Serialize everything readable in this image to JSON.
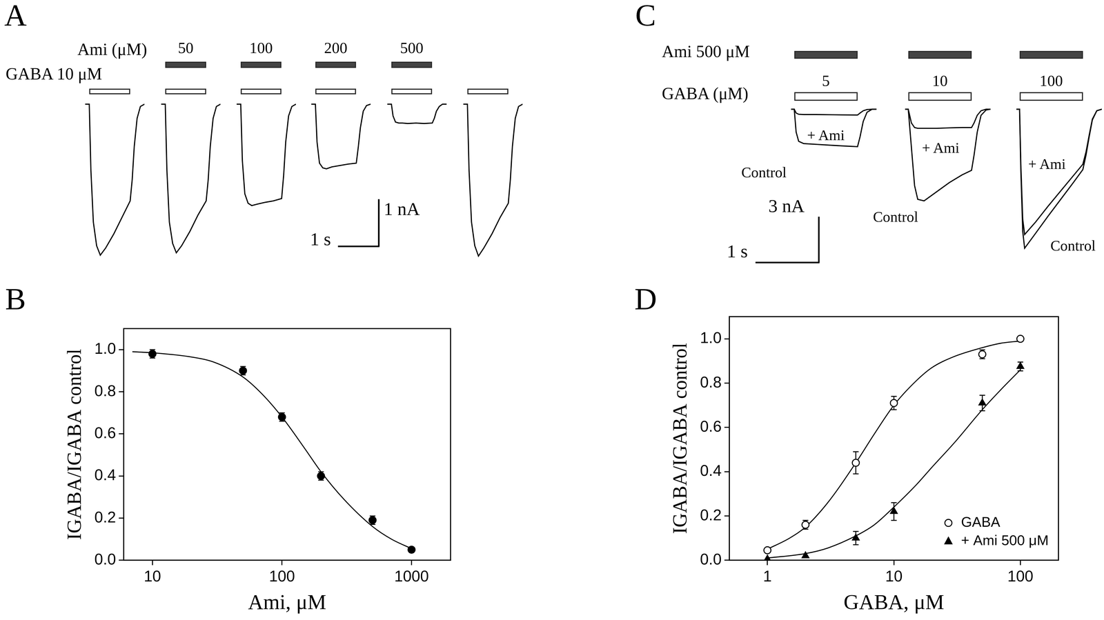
{
  "chart_data": [
    {
      "panel": "A",
      "type": "line",
      "tick_labels": false,
      "xlim": [
        0,
        1.45
      ],
      "ylim": [
        -3.4,
        0.3
      ],
      "scale_bar": {
        "x": 1,
        "x_label": "1 s",
        "y": 1,
        "y_label": "1 nA"
      },
      "applications": [
        {
          "name": "Ami (μM)",
          "color": "#444444",
          "interval": [
            0.1,
            1.1
          ]
        },
        {
          "name": "GABA 10 μM",
          "color": "#ffffff",
          "interval": [
            0.1,
            1.1
          ]
        }
      ],
      "sweeps": [
        {
          "applications": [
            {
              "name": "GABA 10 μM"
            }
          ],
          "series": [
            {
              "color": "#000000",
              "x": [
                0,
                0.1,
                0.14,
                0.2,
                0.28,
                0.37,
                0.5,
                0.7,
                0.9,
                1.1,
                1.15,
                1.2,
                1.27,
                1.35,
                1.45
              ],
              "values": [
                0,
                0,
                -1.4,
                -2.5,
                -3.0,
                -3.2,
                -3.05,
                -2.75,
                -2.4,
                -2.05,
                -1.6,
                -0.9,
                -0.3,
                -0.05,
                0
              ]
            }
          ]
        },
        {
          "applications": [
            {
              "name": "Ami (μM)",
              "label": "50"
            },
            {
              "name": "GABA 10 μM"
            }
          ],
          "series": [
            {
              "color": "#000000",
              "x": [
                0,
                0.1,
                0.14,
                0.2,
                0.28,
                0.37,
                0.5,
                0.7,
                0.9,
                1.1,
                1.15,
                1.2,
                1.27,
                1.35,
                1.45
              ],
              "values": [
                0,
                0,
                -1.4,
                -2.5,
                -2.95,
                -3.15,
                -3.0,
                -2.7,
                -2.35,
                -2.05,
                -1.6,
                -0.9,
                -0.3,
                -0.05,
                0
              ]
            }
          ]
        },
        {
          "applications": [
            {
              "name": "Ami (μM)",
              "label": "100"
            },
            {
              "name": "GABA 10 μM"
            }
          ],
          "series": [
            {
              "color": "#000000",
              "x": [
                0,
                0.1,
                0.14,
                0.2,
                0.28,
                0.37,
                0.5,
                0.7,
                0.9,
                1.1,
                1.15,
                1.2,
                1.27,
                1.35,
                1.45
              ],
              "values": [
                0,
                0,
                -1.2,
                -1.9,
                -2.1,
                -2.15,
                -2.12,
                -2.08,
                -2.05,
                -2.0,
                -1.5,
                -0.8,
                -0.25,
                -0.05,
                0
              ]
            }
          ]
        },
        {
          "applications": [
            {
              "name": "Ami (μM)",
              "label": "200"
            },
            {
              "name": "GABA 10 μM"
            }
          ],
          "series": [
            {
              "color": "#000000",
              "x": [
                0,
                0.1,
                0.14,
                0.2,
                0.28,
                0.37,
                0.5,
                0.7,
                0.9,
                1.1,
                1.15,
                1.2,
                1.27,
                1.35,
                1.45
              ],
              "values": [
                0,
                0,
                -0.8,
                -1.25,
                -1.35,
                -1.37,
                -1.33,
                -1.3,
                -1.27,
                -1.25,
                -0.9,
                -0.5,
                -0.15,
                -0.03,
                0
              ]
            }
          ]
        },
        {
          "applications": [
            {
              "name": "Ami (μM)",
              "label": "500"
            },
            {
              "name": "GABA 10 μM"
            }
          ],
          "series": [
            {
              "color": "#000000",
              "x": [
                0,
                0.1,
                0.14,
                0.2,
                0.28,
                0.37,
                0.5,
                0.7,
                0.9,
                1.1,
                1.15,
                1.2,
                1.27,
                1.35,
                1.45
              ],
              "values": [
                0,
                0,
                -0.25,
                -0.38,
                -0.4,
                -0.4,
                -0.41,
                -0.4,
                -0.41,
                -0.4,
                -0.3,
                -0.15,
                -0.05,
                0,
                0
              ]
            }
          ]
        },
        {
          "applications": [
            {
              "name": "GABA 10 μM"
            }
          ],
          "series": [
            {
              "color": "#000000",
              "x": [
                0,
                0.1,
                0.14,
                0.2,
                0.28,
                0.37,
                0.5,
                0.7,
                0.9,
                1.1,
                1.15,
                1.2,
                1.27,
                1.35,
                1.45
              ],
              "values": [
                0,
                0,
                -1.4,
                -2.5,
                -3.0,
                -3.22,
                -3.05,
                -2.75,
                -2.4,
                -2.1,
                -1.6,
                -0.9,
                -0.3,
                -0.05,
                0
              ]
            }
          ]
        }
      ]
    },
    {
      "panel": "B",
      "type": "scatter",
      "log": "x",
      "grid": false,
      "legend": false,
      "x_label": "Ami, μM",
      "y_label": "IGABA/IGABA control",
      "xlim": [
        6,
        2000
      ],
      "xticks": [
        10,
        100,
        1000
      ],
      "ylim": [
        0,
        1.1
      ],
      "yticks": [
        {
          "value": 0,
          "label": "0.0"
        },
        0.2,
        0.4,
        0.6,
        0.8,
        {
          "value": 1,
          "label": "1.0"
        }
      ],
      "series": [
        {
          "color": "#000000",
          "marker": "circle",
          "x": [
            10,
            50,
            100,
            200,
            500,
            1000
          ],
          "values": [
            0.98,
            0.9,
            0.68,
            0.4,
            0.19,
            0.05
          ],
          "errors": [
            0.02,
            0.02,
            0.02,
            0.02,
            0.02,
            null
          ],
          "fit": {
            "x": [
              7,
              10,
              20,
              30,
              50,
              70,
              100,
              150,
              200,
              300,
              500,
              700,
              1000
            ],
            "values": [
              0.99,
              0.985,
              0.965,
              0.94,
              0.87,
              0.79,
              0.68,
              0.53,
              0.42,
              0.29,
              0.16,
              0.1,
              0.055
            ]
          }
        }
      ]
    },
    {
      "panel": "C",
      "type": "line",
      "tick_labels": false,
      "xlim": [
        0,
        1.35
      ],
      "ylim": [
        -9.5,
        0.5
      ],
      "scale_bar": {
        "x": 1,
        "x_label": "1 s",
        "y": 3,
        "y_label": "3 nA"
      },
      "applications": [
        {
          "name": "Ami 500 μM",
          "color": "#444444",
          "interval": [
            0.05,
            1.05
          ]
        },
        {
          "name": "GABA (μM)",
          "color": "#ffffff",
          "interval": [
            0.05,
            1.05
          ]
        }
      ],
      "sweeps": [
        {
          "applications": [
            {
              "name": "Ami 500 μM"
            },
            {
              "name": "GABA (μM)",
              "label": "5"
            }
          ],
          "series": [
            {
              "name": "Control",
              "color": "#000000",
              "x": [
                0,
                0.05,
                0.08,
                0.12,
                0.2,
                0.4,
                0.6,
                0.8,
                1.05,
                1.09,
                1.14,
                1.2,
                1.28,
                1.35
              ],
              "values": [
                0,
                0,
                -1.5,
                -2.1,
                -2.25,
                -2.3,
                -2.35,
                -2.4,
                -2.45,
                -1.8,
                -0.8,
                -0.2,
                0,
                0
              ]
            },
            {
              "name": "+ Ami",
              "color": "#000000",
              "x": [
                0,
                0.05,
                0.08,
                0.12,
                0.2,
                0.4,
                0.6,
                0.8,
                1.05,
                1.09,
                1.14,
                1.2,
                1.28,
                1.35
              ],
              "values": [
                0,
                0,
                -0.25,
                -0.33,
                -0.35,
                -0.35,
                -0.36,
                -0.37,
                -0.38,
                -0.25,
                -0.1,
                -0.02,
                0,
                0
              ]
            }
          ]
        },
        {
          "applications": [
            {
              "name": "Ami 500 μM"
            },
            {
              "name": "GABA (μM)",
              "label": "10"
            }
          ],
          "series": [
            {
              "name": "Control",
              "color": "#000000",
              "x": [
                0,
                0.05,
                0.1,
                0.15,
                0.2,
                0.3,
                0.5,
                0.7,
                0.9,
                1.05,
                1.09,
                1.14,
                1.2,
                1.28,
                1.35
              ],
              "values": [
                0,
                0,
                -2.5,
                -5.0,
                -5.9,
                -6.0,
                -5.4,
                -4.8,
                -4.3,
                -4.0,
                -3.0,
                -1.5,
                -0.4,
                -0.05,
                0
              ]
            },
            {
              "name": "+ Ami",
              "color": "#000000",
              "x": [
                0,
                0.05,
                0.1,
                0.15,
                0.2,
                0.3,
                0.5,
                0.7,
                0.9,
                1.05,
                1.09,
                1.14,
                1.2,
                1.28,
                1.35
              ],
              "values": [
                0,
                0,
                -0.9,
                -1.2,
                -1.25,
                -1.25,
                -1.25,
                -1.22,
                -1.2,
                -1.2,
                -0.9,
                -0.4,
                -0.1,
                0,
                0
              ]
            }
          ]
        },
        {
          "applications": [
            {
              "name": "Ami 500 μM"
            },
            {
              "name": "GABA (μM)",
              "label": "100"
            }
          ],
          "series": [
            {
              "name": "Control",
              "color": "#000000",
              "x": [
                0,
                0.05,
                0.07,
                0.1,
                0.13,
                0.3,
                0.5,
                0.7,
                0.9,
                1.05,
                1.1,
                1.15,
                1.2,
                1.27,
                1.35
              ],
              "values": [
                0,
                0,
                -4.0,
                -8.0,
                -9.1,
                -8.14,
                -7.0,
                -5.9,
                -4.8,
                -3.95,
                -3.0,
                -1.8,
                -0.7,
                -0.1,
                0
              ]
            },
            {
              "name": "+ Ami",
              "color": "#000000",
              "x": [
                0,
                0.05,
                0.07,
                0.1,
                0.13,
                0.3,
                0.5,
                0.7,
                0.9,
                1.05,
                1.1,
                1.15,
                1.2,
                1.27,
                1.35
              ],
              "values": [
                0,
                0,
                -3.6,
                -7.2,
                -8.2,
                -7.4,
                -6.35,
                -5.35,
                -4.35,
                -3.6,
                -2.8,
                -1.7,
                -0.65,
                -0.1,
                0
              ]
            }
          ]
        }
      ]
    },
    {
      "panel": "D",
      "type": "scatter",
      "log": "x",
      "grid": false,
      "legend": "lower right",
      "x_label": "GABA, μM",
      "y_label": "IGABA/IGABA control",
      "xlim": [
        0.5,
        200
      ],
      "xticks": [
        1,
        10,
        100
      ],
      "ylim": [
        0,
        1.1
      ],
      "yticks": [
        {
          "value": 0,
          "label": "0.0"
        },
        0.2,
        0.4,
        0.6,
        0.8,
        {
          "value": 1,
          "label": "1.0"
        }
      ],
      "series": [
        {
          "name": "GABA",
          "color": "#000000",
          "marker": "open circle",
          "x": [
            1,
            2,
            5,
            10,
            50,
            100
          ],
          "values": [
            0.045,
            0.16,
            0.44,
            0.71,
            0.93,
            1.0
          ],
          "errors": [
            0.01,
            0.02,
            0.05,
            0.03,
            0.02,
            0.01
          ],
          "fit": {
            "x": [
              1,
              1.5,
              2,
              3,
              5,
              7,
              10,
              15,
              20,
              30,
              50,
              70,
              100
            ],
            "values": [
              0.05,
              0.1,
              0.15,
              0.26,
              0.44,
              0.57,
              0.7,
              0.81,
              0.87,
              0.92,
              0.96,
              0.98,
              0.99
            ]
          }
        },
        {
          "name": "+ Ami 500 μM",
          "color": "#000000",
          "marker": "triangle",
          "x": [
            1,
            2,
            5,
            10,
            50,
            100
          ],
          "values": [
            0.005,
            0.02,
            0.1,
            0.22,
            0.71,
            0.875
          ],
          "errors": [
            null,
            null,
            0.03,
            0.04,
            0.035,
            0.02
          ],
          "fit": {
            "x": [
              1,
              2,
              3,
              5,
              7,
              10,
              15,
              20,
              30,
              50,
              70,
              100
            ],
            "values": [
              0.01,
              0.03,
              0.055,
              0.11,
              0.16,
              0.24,
              0.34,
              0.42,
              0.53,
              0.68,
              0.77,
              0.86
            ]
          }
        }
      ]
    }
  ]
}
